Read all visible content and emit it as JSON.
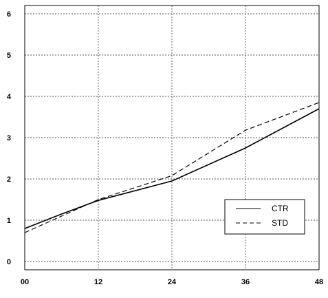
{
  "chart_data": {
    "type": "line",
    "title": "",
    "xlabel": "",
    "ylabel": "",
    "x": [
      0,
      12,
      24,
      36,
      48
    ],
    "x_tick_labels": [
      "00",
      "12",
      "24",
      "36",
      "48"
    ],
    "y_tick_labels": [
      "0",
      "1",
      "2",
      "3",
      "4",
      "5",
      "6"
    ],
    "xlim": [
      0,
      48
    ],
    "ylim": [
      -0.2,
      6.2
    ],
    "grid": true,
    "legend_position": "bottom-right",
    "series": [
      {
        "name": "CTR",
        "style": "solid",
        "x": [
          0,
          6,
          12,
          24,
          36,
          48
        ],
        "values": [
          0.8,
          1.15,
          1.48,
          1.95,
          2.75,
          3.7
        ]
      },
      {
        "name": "STD",
        "style": "dashed",
        "x": [
          0,
          6,
          12,
          24,
          36,
          48
        ],
        "values": [
          0.7,
          1.1,
          1.5,
          2.08,
          3.18,
          3.85
        ]
      }
    ]
  }
}
